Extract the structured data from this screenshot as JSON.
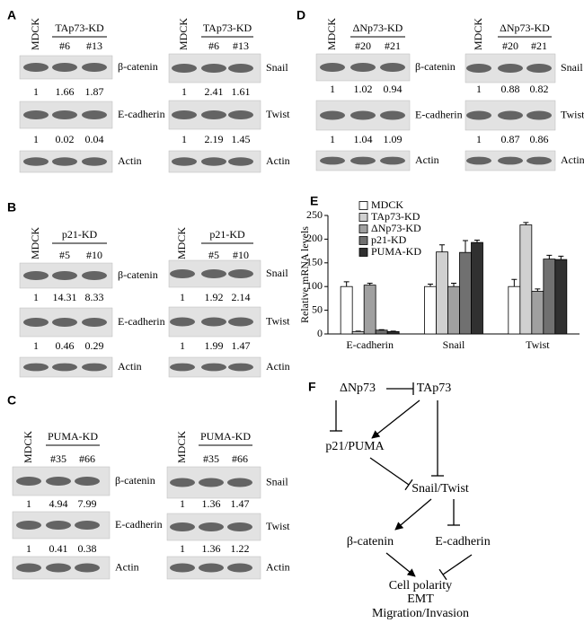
{
  "panels": [
    {
      "label": "A",
      "blots": [
        {
          "lanes": [
            "MDCK",
            "#6",
            "#13"
          ],
          "group": "TAp73-KD",
          "bands": [
            {
              "name": "β-catenin",
              "values": [
                1,
                1.66,
                1.87
              ]
            },
            {
              "name": "E-cadherin",
              "values": [
                1,
                0.02,
                0.04
              ]
            },
            {
              "name": "Actin"
            }
          ]
        },
        {
          "lanes": [
            "MDCK",
            "#6",
            "#13"
          ],
          "group": "TAp73-KD",
          "bands": [
            {
              "name": "Snail",
              "values": [
                1,
                2.41,
                1.61
              ]
            },
            {
              "name": "Twist",
              "values": [
                1,
                2.19,
                1.45
              ]
            },
            {
              "name": "Actin"
            }
          ]
        }
      ]
    },
    {
      "label": "B",
      "blots": [
        {
          "lanes": [
            "MDCK",
            "#5",
            "#10"
          ],
          "group": "p21-KD",
          "bands": [
            {
              "name": "β-catenin",
              "values": [
                1,
                14.31,
                8.33
              ]
            },
            {
              "name": "E-cadherin",
              "values": [
                1,
                0.46,
                0.29
              ]
            },
            {
              "name": "Actin"
            }
          ]
        },
        {
          "lanes": [
            "MDCK",
            "#5",
            "#10"
          ],
          "group": "p21-KD",
          "bands": [
            {
              "name": "Snail",
              "values": [
                1,
                1.92,
                2.14
              ]
            },
            {
              "name": "Twist",
              "values": [
                1,
                1.99,
                1.47
              ]
            },
            {
              "name": "Actin"
            }
          ]
        }
      ]
    },
    {
      "label": "C",
      "blots": [
        {
          "lanes": [
            "MDCK",
            "#35",
            "#66"
          ],
          "group": "PUMA-KD",
          "bands": [
            {
              "name": "β-catenin",
              "values": [
                1,
                4.94,
                7.99
              ]
            },
            {
              "name": "E-cadherin",
              "values": [
                1,
                0.41,
                0.38
              ]
            },
            {
              "name": "Actin"
            }
          ]
        },
        {
          "lanes": [
            "MDCK",
            "#35",
            "#66"
          ],
          "group": "PUMA-KD",
          "bands": [
            {
              "name": "Snail",
              "values": [
                1,
                1.36,
                1.47
              ]
            },
            {
              "name": "Twist",
              "values": [
                1,
                1.36,
                1.22
              ]
            },
            {
              "name": "Actin"
            }
          ]
        }
      ]
    },
    {
      "label": "D",
      "blots": [
        {
          "lanes": [
            "MDCK",
            "#20",
            "#21"
          ],
          "group": "ΔNp73-KD",
          "bands": [
            {
              "name": "β-catenin",
              "values": [
                1,
                1.02,
                0.94
              ]
            },
            {
              "name": "E-cadherin",
              "values": [
                1,
                1.04,
                1.09
              ]
            },
            {
              "name": "Actin"
            }
          ]
        },
        {
          "lanes": [
            "MDCK",
            "#20",
            "#21"
          ],
          "group": "ΔNp73-KD",
          "bands": [
            {
              "name": "Snail",
              "values": [
                1,
                0.88,
                0.82
              ]
            },
            {
              "name": "Twist",
              "values": [
                1,
                0.87,
                0.86
              ]
            },
            {
              "name": "Actin"
            }
          ]
        }
      ]
    }
  ],
  "chart_data": {
    "type": "bar",
    "label": "E",
    "y_label": "Relative mRNA levels",
    "categories": [
      "E-cadherin",
      "Snail",
      "Twist"
    ],
    "series": [
      {
        "name": "MDCK",
        "color": "#ffffff",
        "values": [
          100,
          100,
          100
        ],
        "errors": [
          10,
          5,
          15
        ]
      },
      {
        "name": "TAp73-KD",
        "color": "#d0d0d0",
        "values": [
          5,
          173,
          230
        ],
        "errors": [
          1,
          15,
          5
        ]
      },
      {
        "name": "ΔNp73-KD",
        "color": "#a0a0a0",
        "values": [
          103,
          100,
          90
        ],
        "errors": [
          4,
          7,
          5
        ]
      },
      {
        "name": "p21-KD",
        "color": "#707070",
        "values": [
          8,
          172,
          158
        ],
        "errors": [
          1,
          25,
          8
        ]
      },
      {
        "name": "PUMA-KD",
        "color": "#303030",
        "values": [
          5,
          193,
          157
        ],
        "errors": [
          1,
          5,
          7
        ]
      }
    ],
    "ylim": [
      0,
      250
    ],
    "yticks": [
      0,
      50,
      100,
      150,
      200,
      250
    ],
    "legend": "top-left"
  },
  "diagram": {
    "label": "F",
    "nodes": [
      "ΔNp73",
      "TAp73",
      "p21/PUMA",
      "Snail/Twist",
      "β-catenin",
      "E-cadherin",
      "Cell polarity",
      "EMT",
      "Migration/Invasion"
    ]
  }
}
